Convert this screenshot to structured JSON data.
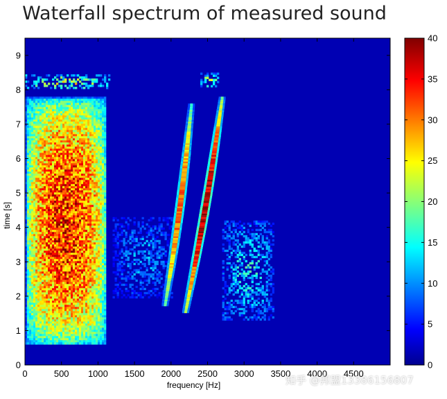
{
  "chart_data": {
    "type": "heatmap",
    "title": "Waterfall spectrum of measured sound",
    "xlabel": "frequency [Hz]",
    "ylabel": "time [s]",
    "xlim": [
      0,
      5000
    ],
    "ylim": [
      0,
      9.5
    ],
    "x_ticks": [
      0,
      500,
      1000,
      1500,
      2000,
      2500,
      3000,
      3500,
      4000,
      4500
    ],
    "y_ticks": [
      0,
      1,
      2,
      3,
      4,
      5,
      6,
      7,
      8,
      9
    ],
    "colorbar": {
      "min": 0,
      "max": 40,
      "ticks": [
        0,
        5,
        10,
        15,
        20,
        25,
        30,
        35,
        40
      ],
      "colormap": "jet"
    },
    "background_level": 2,
    "regions": [
      {
        "label": "broadband low frequency",
        "freq": [
          0,
          1100
        ],
        "time": [
          0.6,
          7.8
        ],
        "peak_level": 36
      },
      {
        "label": "horizontal band",
        "freq": [
          0,
          1150
        ],
        "time": [
          8.05,
          8.45
        ],
        "peak_level": 30
      },
      {
        "label": "short burst",
        "freq": [
          2400,
          2650
        ],
        "time": [
          8.1,
          8.5
        ],
        "peak_level": 28
      },
      {
        "label": "scattered mid band",
        "freq": [
          1200,
          2000
        ],
        "time": [
          2.0,
          4.3
        ],
        "peak_level": 15
      },
      {
        "label": "scattered high band",
        "freq": [
          2700,
          3400
        ],
        "time": [
          1.3,
          4.2
        ],
        "peak_level": 20
      }
    ],
    "sweeps": [
      {
        "label": "sweep 1",
        "points": [
          [
            1920,
            1.8
          ],
          [
            2280,
            7.6
          ]
        ],
        "peak_level": 33
      },
      {
        "label": "sweep 2",
        "points": [
          [
            2200,
            1.6
          ],
          [
            2700,
            7.8
          ]
        ],
        "peak_level": 40
      }
    ]
  },
  "watermark": "知乎 @邦盟13386156807"
}
